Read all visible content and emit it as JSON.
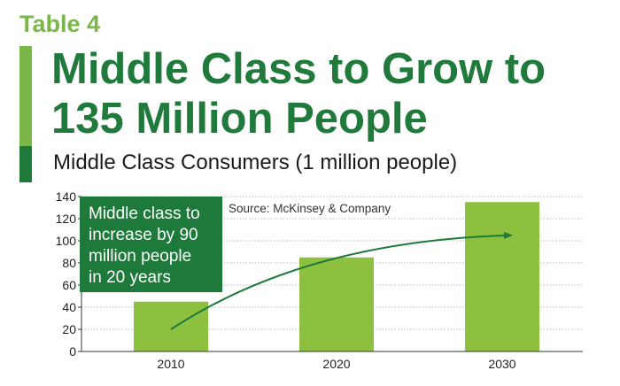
{
  "header": {
    "table_label": "Table 4",
    "title": "Middle Class to Grow to 135 Million People",
    "subtitle": "Middle Class Consumers (1 million people)"
  },
  "chart_meta": {
    "source": "Source: McKinsey & Company",
    "callout_lines": [
      "Middle class to",
      "increase by 90",
      "million people",
      "in 20 years"
    ]
  },
  "colors": {
    "bar": "#8dc03f",
    "arrow": "#1e7a3a",
    "title": "#1f7a3b",
    "accent": "#7ab648"
  },
  "chart_data": {
    "type": "bar",
    "categories": [
      "2010",
      "2020",
      "2030"
    ],
    "values": [
      45,
      85,
      135
    ],
    "ylim": [
      0,
      140
    ],
    "yticks": [
      0,
      20,
      40,
      60,
      80,
      100,
      120,
      140
    ],
    "grid": true,
    "title": "Middle Class Consumers (1 million people)",
    "xlabel": "",
    "ylabel": ""
  }
}
